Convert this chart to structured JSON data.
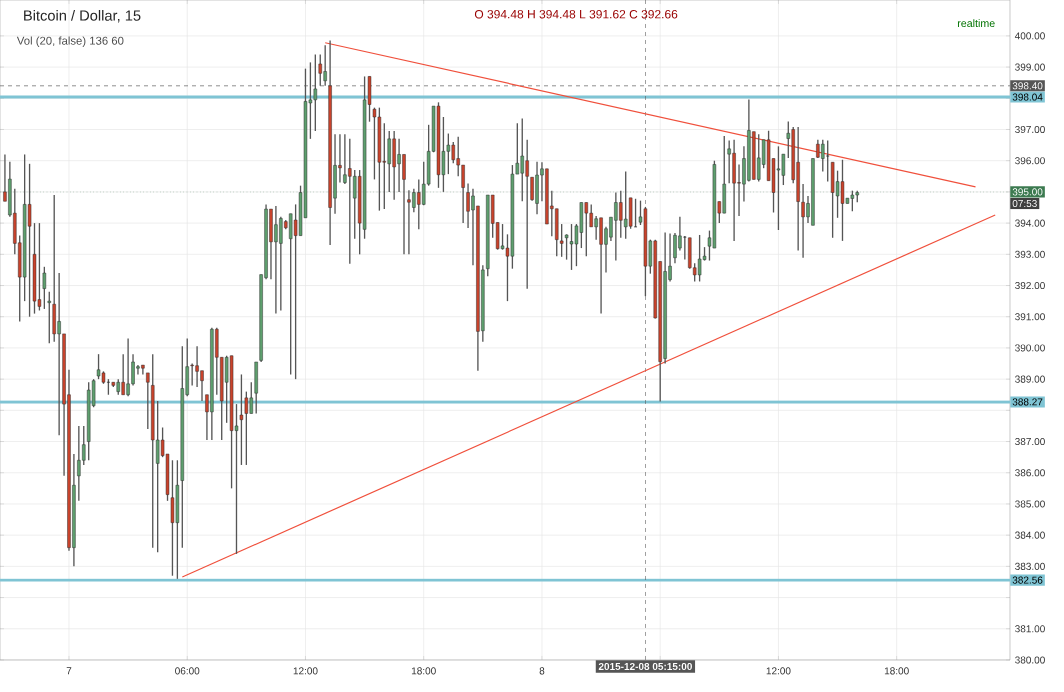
{
  "chart_data": {
    "type": "candlestick",
    "title": "Bitcoin / Dollar, 15",
    "annotations": [
      "O 394.48 H 394.48 L 391.62 C 392.66",
      "Vol (20, false) 136 60",
      "realtime",
      "07:53"
    ],
    "x": [
      "2015-12-06T20:45",
      "2015-12-06T21:00",
      "2015-12-06T21:15",
      "2015-12-06T21:30",
      "2015-12-06T21:45",
      "2015-12-06T22:00",
      "2015-12-06T22:15",
      "2015-12-06T22:30",
      "2015-12-06T22:45",
      "2015-12-06T23:00",
      "2015-12-06T23:15",
      "2015-12-06T23:30",
      "2015-12-06T23:45",
      "2015-12-07T00:00",
      "2015-12-07T00:15",
      "2015-12-07T00:30",
      "2015-12-07T00:45",
      "2015-12-07T01:00",
      "2015-12-07T01:15",
      "2015-12-07T01:30",
      "2015-12-07T01:45",
      "2015-12-07T02:00",
      "2015-12-07T02:15",
      "2015-12-07T02:30",
      "2015-12-07T02:45",
      "2015-12-07T03:00",
      "2015-12-07T03:15",
      "2015-12-07T03:30",
      "2015-12-07T03:45",
      "2015-12-07T04:00",
      "2015-12-07T04:15",
      "2015-12-07T04:30",
      "2015-12-07T04:45",
      "2015-12-07T05:00",
      "2015-12-07T05:15",
      "2015-12-07T05:30",
      "2015-12-07T05:45",
      "2015-12-07T06:00",
      "2015-12-07T06:15",
      "2015-12-07T06:30",
      "2015-12-07T06:45",
      "2015-12-07T07:00",
      "2015-12-07T07:15",
      "2015-12-07T07:30",
      "2015-12-07T07:45",
      "2015-12-07T08:00",
      "2015-12-07T08:15",
      "2015-12-07T08:30",
      "2015-12-07T08:45",
      "2015-12-07T09:00",
      "2015-12-07T09:15",
      "2015-12-07T09:30",
      "2015-12-07T09:45",
      "2015-12-07T10:00",
      "2015-12-07T10:15",
      "2015-12-07T10:30",
      "2015-12-07T10:45",
      "2015-12-07T11:00",
      "2015-12-07T11:15",
      "2015-12-07T11:30",
      "2015-12-07T11:45",
      "2015-12-07T12:00",
      "2015-12-07T12:15",
      "2015-12-07T12:30",
      "2015-12-07T12:45",
      "2015-12-07T13:00",
      "2015-12-07T13:15",
      "2015-12-07T13:30",
      "2015-12-07T13:45",
      "2015-12-07T14:00",
      "2015-12-07T14:15",
      "2015-12-07T14:30",
      "2015-12-07T14:45",
      "2015-12-07T15:00",
      "2015-12-07T15:15",
      "2015-12-07T15:30",
      "2015-12-07T15:45",
      "2015-12-07T16:00",
      "2015-12-07T16:15",
      "2015-12-07T16:30",
      "2015-12-07T16:45",
      "2015-12-07T17:00",
      "2015-12-07T17:15",
      "2015-12-07T17:30",
      "2015-12-07T17:45",
      "2015-12-07T18:00",
      "2015-12-07T18:15",
      "2015-12-07T18:30",
      "2015-12-07T18:45",
      "2015-12-07T19:00",
      "2015-12-07T19:15",
      "2015-12-07T19:30",
      "2015-12-07T19:45",
      "2015-12-07T20:00",
      "2015-12-07T20:15",
      "2015-12-07T20:30",
      "2015-12-07T20:45",
      "2015-12-07T21:00",
      "2015-12-07T21:15",
      "2015-12-07T21:30",
      "2015-12-07T21:45",
      "2015-12-07T22:00",
      "2015-12-07T22:15",
      "2015-12-07T22:30",
      "2015-12-07T22:45",
      "2015-12-07T23:00",
      "2015-12-07T23:15",
      "2015-12-07T23:30",
      "2015-12-07T23:45",
      "2015-12-08T00:00",
      "2015-12-08T00:15",
      "2015-12-08T00:30",
      "2015-12-08T00:45",
      "2015-12-08T01:00",
      "2015-12-08T01:15",
      "2015-12-08T01:30",
      "2015-12-08T01:45",
      "2015-12-08T02:00",
      "2015-12-08T02:15",
      "2015-12-08T02:30",
      "2015-12-08T02:45",
      "2015-12-08T03:00",
      "2015-12-08T03:15",
      "2015-12-08T03:30",
      "2015-12-08T03:45",
      "2015-12-08T04:00",
      "2015-12-08T04:15",
      "2015-12-08T04:30",
      "2015-12-08T04:45",
      "2015-12-08T05:00",
      "2015-12-08T05:15",
      "2015-12-08T05:30",
      "2015-12-08T05:45",
      "2015-12-08T06:00",
      "2015-12-08T06:15",
      "2015-12-08T06:30",
      "2015-12-08T06:45",
      "2015-12-08T07:00",
      "2015-12-08T07:15",
      "2015-12-08T07:30",
      "2015-12-08T07:45",
      "2015-12-08T08:00",
      "2015-12-08T08:15",
      "2015-12-08T08:30",
      "2015-12-08T08:45",
      "2015-12-08T09:00",
      "2015-12-08T09:15",
      "2015-12-08T09:30",
      "2015-12-08T09:45",
      "2015-12-08T10:00",
      "2015-12-08T10:15",
      "2015-12-08T10:30",
      "2015-12-08T10:45",
      "2015-12-08T11:00",
      "2015-12-08T11:15",
      "2015-12-08T11:30",
      "2015-12-08T11:45",
      "2015-12-08T12:00",
      "2015-12-08T12:15",
      "2015-12-08T12:30",
      "2015-12-08T12:45",
      "2015-12-08T13:00",
      "2015-12-08T13:15",
      "2015-12-08T13:30",
      "2015-12-08T13:45",
      "2015-12-08T14:00",
      "2015-12-08T14:15",
      "2015-12-08T14:30",
      "2015-12-08T14:45",
      "2015-12-08T15:00",
      "2015-12-08T15:15",
      "2015-12-08T15:30",
      "2015-12-08T15:45",
      "2015-12-08T16:00"
    ],
    "ohlc": [
      [
        395.0,
        396.2,
        394.7,
        394.7
      ],
      [
        394.26,
        395.97,
        394.2,
        395.41
      ],
      [
        394.32,
        395.1,
        393.0,
        393.35
      ],
      [
        393.37,
        393.6,
        390.85,
        392.27
      ],
      [
        392.27,
        396.2,
        391.5,
        394.6
      ],
      [
        394.6,
        395.9,
        391.0,
        393.9
      ],
      [
        393.0,
        394.0,
        391.1,
        391.5
      ],
      [
        391.55,
        394.0,
        391.2,
        391.33
      ],
      [
        391.9,
        392.6,
        391.25,
        392.4
      ],
      [
        391.45,
        391.8,
        390.15,
        391.5
      ],
      [
        391.4,
        394.9,
        390.2,
        390.45
      ],
      [
        390.45,
        392.4,
        387.2,
        390.85
      ],
      [
        390.45,
        390.45,
        385.9,
        388.2
      ],
      [
        388.5,
        389.3,
        383.5,
        383.6
      ],
      [
        383.6,
        386.6,
        383.0,
        385.6
      ],
      [
        385.9,
        387.5,
        385.1,
        386.4
      ],
      [
        386.4,
        387.5,
        386.25,
        386.9
      ],
      [
        387.0,
        388.9,
        386.4,
        388.65
      ],
      [
        388.15,
        389.0,
        388.1,
        388.95
      ],
      [
        389.1,
        389.8,
        389.0,
        389.3
      ],
      [
        389.2,
        389.25,
        388.85,
        388.9
      ],
      [
        388.9,
        389.0,
        388.5,
        388.9
      ],
      [
        388.9,
        388.9,
        388.75,
        388.8
      ],
      [
        388.6,
        389.0,
        388.5,
        388.9
      ],
      [
        388.9,
        389.8,
        388.5,
        388.5
      ],
      [
        388.5,
        390.3,
        388.45,
        388.85
      ],
      [
        388.85,
        389.8,
        388.8,
        389.55
      ],
      [
        389.35,
        389.45,
        389.15,
        389.4
      ],
      [
        389.45,
        389.45,
        389.15,
        389.35
      ],
      [
        389.2,
        389.2,
        387.4,
        388.9
      ],
      [
        388.8,
        389.8,
        383.6,
        387.05
      ],
      [
        386.3,
        388.3,
        383.45,
        387.05
      ],
      [
        387.05,
        387.45,
        386.5,
        386.55
      ],
      [
        386.6,
        386.6,
        385.1,
        385.3
      ],
      [
        385.2,
        386.4,
        382.7,
        384.4
      ],
      [
        384.4,
        386.4,
        382.6,
        385.6
      ],
      [
        385.75,
        390.05,
        383.6,
        388.7
      ],
      [
        388.5,
        390.3,
        388.45,
        389.4
      ],
      [
        389.45,
        389.5,
        388.8,
        389.43
      ],
      [
        389.43,
        390.05,
        388.75,
        389.25
      ],
      [
        389.27,
        389.27,
        388.3,
        388.95
      ],
      [
        388.5,
        388.5,
        387.05,
        387.95
      ],
      [
        387.95,
        390.65,
        387.05,
        390.6
      ],
      [
        390.6,
        390.65,
        388.5,
        389.7
      ],
      [
        389.7,
        389.7,
        387.05,
        388.3
      ],
      [
        388.9,
        389.75,
        387.6,
        389.7
      ],
      [
        389.75,
        389.75,
        385.5,
        387.35
      ],
      [
        387.35,
        388.2,
        383.4,
        387.5
      ],
      [
        387.85,
        389.15,
        386.25,
        387.7
      ],
      [
        388.4,
        388.6,
        386.25,
        387.9
      ],
      [
        387.9,
        388.9,
        387.9,
        388.4
      ],
      [
        388.55,
        389.55,
        387.9,
        389.55
      ],
      [
        389.6,
        392.35,
        389.55,
        392.35
      ],
      [
        392.25,
        394.6,
        392.2,
        394.45
      ],
      [
        394.45,
        394.45,
        392.2,
        393.4
      ],
      [
        393.4,
        394.55,
        391.1,
        393.95
      ],
      [
        393.35,
        394.2,
        391.2,
        394.15
      ],
      [
        394.05,
        394.1,
        393.8,
        393.85
      ],
      [
        393.5,
        394.3,
        389.15,
        394.3
      ],
      [
        394.1,
        394.6,
        389.0,
        393.6
      ],
      [
        393.6,
        395.2,
        393.6,
        394.98
      ],
      [
        394.17,
        398.95,
        394.17,
        397.9
      ],
      [
        397.85,
        399.15,
        396.7,
        397.95
      ],
      [
        397.95,
        399.4,
        396.95,
        398.3
      ],
      [
        399.1,
        399.4,
        398.4,
        398.8
      ],
      [
        398.56,
        399.7,
        398.4,
        398.86
      ],
      [
        398.4,
        399.85,
        393.3,
        394.5
      ],
      [
        394.8,
        396.85,
        394.3,
        395.85
      ],
      [
        395.85,
        396.85,
        395.3,
        395.77
      ],
      [
        395.3,
        396.85,
        395.25,
        395.55
      ],
      [
        395.75,
        396.7,
        392.7,
        395.5
      ],
      [
        394.8,
        395.7,
        393.5,
        395.5
      ],
      [
        395.5,
        395.7,
        393.0,
        394.0
      ],
      [
        393.8,
        398.7,
        393.5,
        397.95
      ],
      [
        398.7,
        398.7,
        397.25,
        397.8
      ],
      [
        397.65,
        397.7,
        395.4,
        397.4
      ],
      [
        397.4,
        397.7,
        394.4,
        395.95
      ],
      [
        395.98,
        397.2,
        394.45,
        395.95
      ],
      [
        395.9,
        396.95,
        395.0,
        396.7
      ],
      [
        396.7,
        396.95,
        394.75,
        395.8
      ],
      [
        395.9,
        396.7,
        395.0,
        396.2
      ],
      [
        396.2,
        396.2,
        393.0,
        395.4
      ],
      [
        394.75,
        395.05,
        393.0,
        394.67
      ],
      [
        394.5,
        395.1,
        394.35,
        394.98
      ],
      [
        394.98,
        395.4,
        393.8,
        394.6
      ],
      [
        394.6,
        395.97,
        394.57,
        395.25
      ],
      [
        395.25,
        397.15,
        395.2,
        396.3
      ],
      [
        396.3,
        397.75,
        396.27,
        397.75
      ],
      [
        397.75,
        397.87,
        395.13,
        395.55
      ],
      [
        395.55,
        397.4,
        395.0,
        396.3
      ],
      [
        396.3,
        396.87,
        395.57,
        396.5
      ],
      [
        396.5,
        396.6,
        395.92,
        396.03
      ],
      [
        396.07,
        396.77,
        395.5,
        395.86
      ],
      [
        395.86,
        395.86,
        394.0,
        395.14
      ],
      [
        394.98,
        395.27,
        393.84,
        394.38
      ],
      [
        394.42,
        395.1,
        392.65,
        394.87
      ],
      [
        394.55,
        394.55,
        389.27,
        390.53
      ],
      [
        390.55,
        392.65,
        390.2,
        392.5
      ],
      [
        392.54,
        394.9,
        392.3,
        394.9
      ],
      [
        394.9,
        394.9,
        393.53,
        393.99
      ],
      [
        394.02,
        394.02,
        393.15,
        393.18
      ],
      [
        393.18,
        393.97,
        393.15,
        393.27
      ],
      [
        393.2,
        393.64,
        391.5,
        392.94
      ],
      [
        392.94,
        395.86,
        392.54,
        395.57
      ],
      [
        395.57,
        397.2,
        395.57,
        395.92
      ],
      [
        395.6,
        397.35,
        394.7,
        396.15
      ],
      [
        396.0,
        396.67,
        391.9,
        395.5
      ],
      [
        395.47,
        395.47,
        394.72,
        394.75
      ],
      [
        394.63,
        395.97,
        394.28,
        395.54
      ],
      [
        395.54,
        395.95,
        394.7,
        395.74
      ],
      [
        395.74,
        395.74,
        393.97,
        393.97
      ],
      [
        394.55,
        395.04,
        393.58,
        394.46
      ],
      [
        394.46,
        394.46,
        392.94,
        393.47
      ],
      [
        393.43,
        393.97,
        392.92,
        393.35
      ],
      [
        393.53,
        393.64,
        392.83,
        393.62
      ],
      [
        393.33,
        393.97,
        392.5,
        393.41
      ],
      [
        393.33,
        393.97,
        392.62,
        393.91
      ],
      [
        393.7,
        394.66,
        393.2,
        394.66
      ],
      [
        394.66,
        394.66,
        392.94,
        394.32
      ],
      [
        394.32,
        394.6,
        393.88,
        393.88
      ],
      [
        393.88,
        394.23,
        393.47,
        394.14
      ],
      [
        394.17,
        394.17,
        391.1,
        393.32
      ],
      [
        393.32,
        393.88,
        392.42,
        393.82
      ],
      [
        393.55,
        394.19,
        393.43,
        394.19
      ],
      [
        394.09,
        394.98,
        392.8,
        394.66
      ],
      [
        394.66,
        395.04,
        393.53,
        394.09
      ],
      [
        393.88,
        395.65,
        393.5,
        394.13
      ],
      [
        394.81,
        394.81,
        393.82,
        393.9
      ],
      [
        393.88,
        394.78,
        393.88,
        393.88
      ],
      [
        394.03,
        394.72,
        393.94,
        394.2
      ],
      [
        394.46,
        394.52,
        391.66,
        392.62
      ],
      [
        392.62,
        393.47,
        392.38,
        393.43
      ],
      [
        393.43,
        393.47,
        390.94,
        390.96
      ],
      [
        392.77,
        392.77,
        388.28,
        389.56
      ],
      [
        389.66,
        393.7,
        389.5,
        392.45
      ],
      [
        392.19,
        393.67,
        392.13,
        392.62
      ],
      [
        392.89,
        393.68,
        392.71,
        393.61
      ],
      [
        393.2,
        394.2,
        393.12,
        393.59
      ],
      [
        393.55,
        393.59,
        392.83,
        393.55
      ],
      [
        393.53,
        393.53,
        392.54,
        392.57
      ],
      [
        392.57,
        392.71,
        392.13,
        392.34
      ],
      [
        392.34,
        393.62,
        392.13,
        392.85
      ],
      [
        392.83,
        393.23,
        392.8,
        392.94
      ],
      [
        393.26,
        393.76,
        392.8,
        393.53
      ],
      [
        393.2,
        396.0,
        393.2,
        395.88
      ],
      [
        394.69,
        394.69,
        394.0,
        394.32
      ],
      [
        394.32,
        396.79,
        394.32,
        395.25
      ],
      [
        396.21,
        396.65,
        395.28,
        396.38
      ],
      [
        396.24,
        396.67,
        393.43,
        395.28
      ],
      [
        395.3,
        395.88,
        394.23,
        395.28
      ],
      [
        395.25,
        396.46,
        394.69,
        396.07
      ],
      [
        395.37,
        397.96,
        395.33,
        396.97
      ],
      [
        396.93,
        396.93,
        395.4,
        395.4
      ],
      [
        395.4,
        396.85,
        395.33,
        396.09
      ],
      [
        395.88,
        396.67,
        395.76,
        396.67
      ],
      [
        396.67,
        396.96,
        395.36,
        395.36
      ],
      [
        396.07,
        396.07,
        394.34,
        394.98
      ],
      [
        395.7,
        396.46,
        393.78,
        395.74
      ],
      [
        395.53,
        396.21,
        395.22,
        396.21
      ],
      [
        396.71,
        397.26,
        396.09,
        396.88
      ],
      [
        397.0,
        397.08,
        395.28,
        395.39
      ],
      [
        395.95,
        397.08,
        393.12,
        394.69
      ],
      [
        394.67,
        395.25,
        392.89,
        394.2
      ],
      [
        394.2,
        394.87,
        394.0,
        394.63
      ],
      [
        393.93,
        396.07,
        393.93,
        396.07
      ],
      [
        396.53,
        396.67,
        396.09,
        396.11
      ],
      [
        396.07,
        396.67,
        395.65,
        396.53
      ],
      [
        396.15,
        396.65,
        395.33,
        396.15
      ],
      [
        395.95,
        395.95,
        393.53,
        394.98
      ],
      [
        394.87,
        395.68,
        394.17,
        395.33
      ],
      [
        395.33,
        396.03,
        393.43,
        394.63
      ],
      [
        394.63,
        394.8,
        394.63,
        394.8
      ],
      [
        394.79,
        395.04,
        394.38,
        394.9
      ],
      [
        394.9,
        395.04,
        394.67,
        394.98
      ]
    ],
    "series": [
      {
        "type": "line",
        "color": "#f0503c",
        "x": [
          "2015-12-07T13:00",
          "2015-12-08T22:00"
        ],
        "values": [
          399.78,
          395.16
        ]
      },
      {
        "type": "line",
        "color": "#f0503c",
        "x": [
          "2015-12-07T05:45",
          "2015-12-08T23:00"
        ],
        "values": [
          382.66,
          394.26
        ]
      }
    ],
    "xlim": [
      "2015-12-06T20:30",
      "2015-12-08T23:45"
    ],
    "ylim": [
      380,
      401.15
    ],
    "xticks": [
      {
        "value": "2015-12-07T00:00",
        "label": "7"
      },
      {
        "value": "2015-12-07T06:00",
        "label": "06:00"
      },
      {
        "value": "2015-12-07T12:00",
        "label": "12:00"
      },
      {
        "value": "2015-12-07T18:00",
        "label": "18:00"
      },
      {
        "value": "2015-12-08T00:00",
        "label": "8"
      },
      {
        "value": "2015-12-08T06:00",
        "label": null
      },
      {
        "value": "2015-12-08T12:00",
        "label": "12:00"
      },
      {
        "value": "2015-12-08T18:00",
        "label": "18:00"
      }
    ],
    "yticks": [
      {
        "value": 380,
        "label": "380.00"
      },
      {
        "value": 381,
        "label": "381.00"
      },
      {
        "value": 382,
        "label": null
      },
      {
        "value": 383,
        "label": "383.00"
      },
      {
        "value": 384,
        "label": "384.00"
      },
      {
        "value": 385,
        "label": "385.00"
      },
      {
        "value": 386,
        "label": "386.00"
      },
      {
        "value": 387,
        "label": "387.00"
      },
      {
        "value": 388,
        "label": null
      },
      {
        "value": 389,
        "label": "389.00"
      },
      {
        "value": 390,
        "label": "390.00"
      },
      {
        "value": 391,
        "label": "391.00"
      },
      {
        "value": 392,
        "label": "392.00"
      },
      {
        "value": 393,
        "label": "393.00"
      },
      {
        "value": 394,
        "label": "394.00"
      },
      {
        "value": 395,
        "label": null
      },
      {
        "value": 396,
        "label": "396.00"
      },
      {
        "value": 397,
        "label": "397.00"
      },
      {
        "value": 398,
        "label": null
      },
      {
        "value": 399,
        "label": "399.00"
      },
      {
        "value": 400,
        "label": "400.00"
      }
    ],
    "grid": true,
    "ref_lines": [
      {
        "axis": "y",
        "value": 398.04,
        "label": "398.04",
        "color": "#7fc4d4",
        "line_style": "solid"
      },
      {
        "axis": "y",
        "value": 388.27,
        "label": "388.27",
        "color": "#7fc4d4",
        "line_style": "solid"
      },
      {
        "axis": "y",
        "value": 382.56,
        "label": "382.56",
        "color": "#7fc4d4",
        "line_style": "solid"
      },
      {
        "axis": "y",
        "value": 398.4,
        "label": "398.40",
        "color": "#555555",
        "line_style": "dashed"
      },
      {
        "axis": "y",
        "value": 395.0,
        "label": "395.00",
        "color": "#3c7a50",
        "line_style": "dotted"
      },
      {
        "axis": "x",
        "value": "2015-12-08T05:15",
        "label": "2015-12-08 05:15:00",
        "color": "#555555",
        "line_style": "dashed"
      }
    ]
  }
}
